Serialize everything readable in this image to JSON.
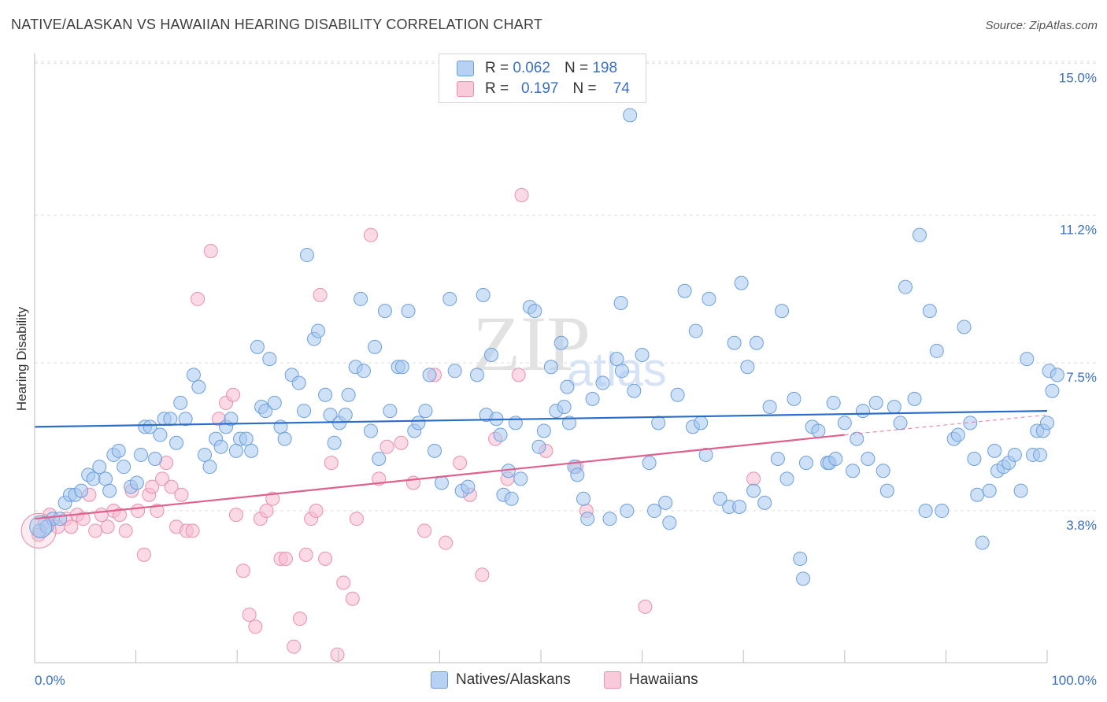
{
  "header": {
    "title": "NATIVE/ALASKAN VS HAWAIIAN HEARING DISABILITY CORRELATION CHART",
    "source": "Source: ZipAtlas.com"
  },
  "legend_top": {
    "rows": [
      {
        "r_label": "R =",
        "r_value": "0.062",
        "n_label": "N =",
        "n_value": "198"
      },
      {
        "r_label": "R =",
        "r_value": "0.197",
        "n_label": "N =",
        "n_value": "74"
      }
    ]
  },
  "legend_bottom": {
    "items": [
      {
        "label": "Natives/Alaskans"
      },
      {
        "label": "Hawaiians"
      }
    ]
  },
  "colors": {
    "blue_fill": "#a8c8f0",
    "blue_stroke": "#6c9fdc",
    "blue_line": "#2a6cc8",
    "pink_fill": "#f7bcd0",
    "pink_stroke": "#e890ae",
    "pink_line": "#e0608e",
    "grid": "#dcdcdc",
    "axis_text": "#3a6fc4"
  },
  "chart_data": {
    "type": "scatter",
    "ylabel": "Hearing Disability",
    "xlim": [
      0,
      100
    ],
    "ylim": [
      0,
      15.4
    ],
    "y_ticks": [
      3.8,
      7.5,
      11.2,
      15.0
    ],
    "y_tick_labels": [
      "3.8%",
      "7.5%",
      "11.2%",
      "15.0%"
    ],
    "x_tick_labels": [
      "0.0%",
      "100.0%"
    ],
    "grid": "horizontal dashed",
    "watermark": "ZIPatlas",
    "series": [
      {
        "name": "Natives/Alaskans",
        "color": "#6c9fdc",
        "trend": {
          "x": [
            0,
            100
          ],
          "y": [
            5.9,
            6.3
          ]
        },
        "points": [
          [
            0.5,
            3.3
          ],
          [
            1.2,
            3.4
          ],
          [
            1.8,
            3.6
          ],
          [
            2.5,
            3.6
          ],
          [
            3.0,
            4.0
          ],
          [
            3.5,
            4.2
          ],
          [
            4.0,
            4.2
          ],
          [
            4.6,
            4.3
          ],
          [
            5.3,
            4.7
          ],
          [
            5.8,
            4.6
          ],
          [
            6.4,
            4.9
          ],
          [
            7.0,
            4.6
          ],
          [
            7.4,
            4.3
          ],
          [
            7.8,
            5.2
          ],
          [
            8.3,
            5.3
          ],
          [
            8.8,
            4.9
          ],
          [
            9.5,
            4.4
          ],
          [
            10.1,
            4.5
          ],
          [
            10.5,
            5.2
          ],
          [
            10.9,
            5.9
          ],
          [
            11.4,
            5.9
          ],
          [
            11.9,
            5.1
          ],
          [
            12.4,
            5.7
          ],
          [
            12.8,
            6.1
          ],
          [
            13.4,
            6.1
          ],
          [
            14.0,
            5.5
          ],
          [
            14.4,
            6.5
          ],
          [
            14.9,
            6.1
          ],
          [
            15.7,
            7.2
          ],
          [
            16.2,
            6.9
          ],
          [
            16.8,
            5.2
          ],
          [
            17.3,
            4.9
          ],
          [
            17.9,
            5.6
          ],
          [
            18.4,
            5.4
          ],
          [
            18.9,
            5.9
          ],
          [
            19.4,
            6.1
          ],
          [
            19.9,
            5.3
          ],
          [
            20.3,
            5.6
          ],
          [
            20.9,
            5.6
          ],
          [
            21.4,
            5.3
          ],
          [
            22.0,
            7.9
          ],
          [
            22.4,
            6.4
          ],
          [
            22.8,
            6.3
          ],
          [
            23.2,
            7.6
          ],
          [
            23.7,
            6.5
          ],
          [
            24.3,
            5.9
          ],
          [
            24.7,
            5.6
          ],
          [
            25.4,
            7.2
          ],
          [
            26.1,
            7.0
          ],
          [
            26.6,
            6.3
          ],
          [
            26.9,
            10.2
          ],
          [
            27.6,
            8.1
          ],
          [
            28.0,
            8.3
          ],
          [
            28.7,
            6.7
          ],
          [
            29.2,
            6.2
          ],
          [
            29.6,
            5.5
          ],
          [
            30.1,
            6.0
          ],
          [
            30.7,
            6.2
          ],
          [
            31.0,
            6.7
          ],
          [
            31.7,
            7.4
          ],
          [
            32.2,
            9.1
          ],
          [
            32.5,
            7.3
          ],
          [
            33.2,
            5.8
          ],
          [
            33.6,
            7.9
          ],
          [
            34.0,
            5.1
          ],
          [
            34.6,
            8.8
          ],
          [
            35.1,
            6.3
          ],
          [
            35.9,
            7.4
          ],
          [
            36.3,
            7.4
          ],
          [
            36.9,
            8.8
          ],
          [
            37.5,
            5.8
          ],
          [
            37.9,
            6.0
          ],
          [
            38.6,
            6.3
          ],
          [
            39.0,
            7.2
          ],
          [
            39.5,
            5.3
          ],
          [
            40.2,
            4.5
          ],
          [
            41.0,
            9.1
          ],
          [
            41.5,
            7.3
          ],
          [
            42.2,
            4.3
          ],
          [
            42.8,
            4.4
          ],
          [
            43.7,
            7.2
          ],
          [
            44.3,
            9.2
          ],
          [
            44.6,
            6.2
          ],
          [
            45.1,
            7.7
          ],
          [
            45.6,
            6.1
          ],
          [
            46.0,
            5.7
          ],
          [
            46.3,
            4.2
          ],
          [
            46.8,
            4.8
          ],
          [
            47.1,
            4.1
          ],
          [
            47.5,
            6.0
          ],
          [
            48.0,
            4.6
          ],
          [
            48.9,
            8.9
          ],
          [
            49.4,
            8.8
          ],
          [
            49.8,
            5.4
          ],
          [
            50.3,
            5.8
          ],
          [
            51.0,
            7.4
          ],
          [
            51.5,
            6.3
          ],
          [
            52.0,
            8.0
          ],
          [
            52.3,
            6.4
          ],
          [
            52.6,
            6.9
          ],
          [
            52.8,
            6.0
          ],
          [
            53.3,
            4.9
          ],
          [
            53.6,
            4.7
          ],
          [
            54.2,
            4.1
          ],
          [
            54.6,
            3.6
          ],
          [
            55.1,
            6.6
          ],
          [
            56.1,
            7.0
          ],
          [
            56.8,
            3.6
          ],
          [
            57.5,
            7.6
          ],
          [
            57.9,
            9.0
          ],
          [
            58.0,
            7.3
          ],
          [
            58.5,
            3.8
          ],
          [
            58.8,
            13.7
          ],
          [
            59.2,
            6.8
          ],
          [
            60.0,
            7.7
          ],
          [
            60.7,
            5.0
          ],
          [
            61.2,
            3.8
          ],
          [
            61.6,
            6.0
          ],
          [
            62.3,
            4.0
          ],
          [
            62.7,
            3.5
          ],
          [
            63.5,
            6.7
          ],
          [
            64.2,
            9.3
          ],
          [
            65.0,
            5.9
          ],
          [
            65.3,
            8.3
          ],
          [
            65.8,
            6.0
          ],
          [
            66.3,
            5.2
          ],
          [
            66.6,
            9.1
          ],
          [
            67.7,
            4.1
          ],
          [
            68.6,
            3.9
          ],
          [
            69.1,
            8.0
          ],
          [
            69.6,
            3.9
          ],
          [
            69.8,
            9.5
          ],
          [
            70.4,
            7.4
          ],
          [
            71.0,
            4.3
          ],
          [
            71.3,
            8.0
          ],
          [
            72.1,
            4.0
          ],
          [
            72.6,
            6.4
          ],
          [
            73.4,
            5.1
          ],
          [
            73.8,
            8.8
          ],
          [
            74.3,
            4.6
          ],
          [
            75.0,
            6.6
          ],
          [
            75.6,
            2.6
          ],
          [
            75.9,
            2.1
          ],
          [
            76.2,
            5.0
          ],
          [
            76.8,
            5.9
          ],
          [
            77.4,
            5.8
          ],
          [
            78.3,
            5.0
          ],
          [
            78.5,
            5.0
          ],
          [
            78.9,
            6.5
          ],
          [
            79.1,
            5.1
          ],
          [
            80.0,
            6.0
          ],
          [
            80.8,
            4.8
          ],
          [
            81.2,
            5.6
          ],
          [
            81.8,
            6.3
          ],
          [
            82.3,
            5.1
          ],
          [
            83.1,
            6.5
          ],
          [
            83.8,
            4.8
          ],
          [
            84.2,
            4.3
          ],
          [
            84.9,
            6.4
          ],
          [
            85.5,
            6.0
          ],
          [
            86.0,
            9.4
          ],
          [
            86.9,
            6.6
          ],
          [
            87.4,
            10.7
          ],
          [
            88.0,
            3.8
          ],
          [
            88.4,
            8.8
          ],
          [
            89.1,
            7.8
          ],
          [
            89.6,
            3.8
          ],
          [
            90.8,
            5.6
          ],
          [
            91.2,
            5.7
          ],
          [
            91.8,
            8.4
          ],
          [
            92.4,
            6.0
          ],
          [
            92.8,
            5.1
          ],
          [
            93.1,
            4.2
          ],
          [
            93.6,
            3.0
          ],
          [
            94.3,
            4.3
          ],
          [
            94.8,
            5.3
          ],
          [
            95.1,
            4.8
          ],
          [
            95.7,
            4.9
          ],
          [
            96.2,
            5.0
          ],
          [
            96.8,
            5.2
          ],
          [
            97.4,
            4.3
          ],
          [
            98.0,
            7.6
          ],
          [
            98.6,
            5.2
          ],
          [
            99.0,
            5.8
          ],
          [
            99.3,
            5.2
          ],
          [
            99.6,
            5.8
          ],
          [
            100.0,
            6.0
          ],
          [
            100.2,
            7.3
          ],
          [
            100.5,
            6.8
          ],
          [
            101.0,
            7.2
          ]
        ]
      },
      {
        "name": "Hawaiians",
        "color": "#e890ae",
        "trend": {
          "x": [
            0,
            80
          ],
          "y": [
            3.6,
            5.7
          ]
        },
        "trend_dashed": {
          "x": [
            80,
            100
          ],
          "y": [
            5.7,
            6.2
          ]
        },
        "points": [
          [
            0.4,
            3.2
          ],
          [
            1.0,
            3.5
          ],
          [
            1.5,
            3.7
          ],
          [
            2.3,
            3.4
          ],
          [
            3.1,
            3.6
          ],
          [
            3.6,
            3.4
          ],
          [
            4.2,
            3.7
          ],
          [
            4.8,
            3.6
          ],
          [
            5.4,
            4.2
          ],
          [
            6.0,
            3.3
          ],
          [
            6.6,
            3.7
          ],
          [
            7.2,
            3.4
          ],
          [
            7.8,
            3.8
          ],
          [
            8.4,
            3.7
          ],
          [
            9.0,
            3.3
          ],
          [
            9.6,
            4.3
          ],
          [
            10.2,
            3.8
          ],
          [
            10.8,
            2.7
          ],
          [
            11.3,
            4.2
          ],
          [
            11.6,
            4.4
          ],
          [
            12.1,
            3.8
          ],
          [
            12.6,
            4.6
          ],
          [
            13.0,
            5.0
          ],
          [
            13.5,
            4.4
          ],
          [
            14.0,
            3.4
          ],
          [
            14.5,
            4.2
          ],
          [
            15.0,
            3.3
          ],
          [
            15.6,
            3.3
          ],
          [
            16.1,
            9.1
          ],
          [
            17.4,
            10.3
          ],
          [
            18.2,
            6.1
          ],
          [
            18.9,
            6.5
          ],
          [
            19.6,
            6.7
          ],
          [
            19.9,
            3.7
          ],
          [
            20.6,
            2.3
          ],
          [
            21.2,
            1.2
          ],
          [
            21.8,
            0.9
          ],
          [
            22.3,
            3.6
          ],
          [
            22.9,
            3.8
          ],
          [
            23.5,
            4.1
          ],
          [
            24.3,
            2.6
          ],
          [
            24.8,
            2.6
          ],
          [
            25.6,
            0.4
          ],
          [
            26.2,
            1.1
          ],
          [
            26.8,
            2.7
          ],
          [
            27.3,
            3.6
          ],
          [
            27.8,
            3.8
          ],
          [
            28.2,
            9.2
          ],
          [
            28.7,
            2.6
          ],
          [
            29.3,
            5.0
          ],
          [
            29.9,
            0.2
          ],
          [
            30.5,
            2.0
          ],
          [
            31.4,
            1.6
          ],
          [
            31.8,
            3.6
          ],
          [
            33.2,
            10.7
          ],
          [
            34.0,
            4.6
          ],
          [
            34.8,
            5.4
          ],
          [
            36.2,
            5.5
          ],
          [
            37.4,
            4.5
          ],
          [
            38.5,
            3.3
          ],
          [
            39.5,
            7.2
          ],
          [
            40.6,
            3.0
          ],
          [
            42.0,
            5.0
          ],
          [
            43.0,
            4.2
          ],
          [
            44.2,
            2.2
          ],
          [
            45.5,
            5.6
          ],
          [
            46.7,
            4.6
          ],
          [
            47.8,
            7.2
          ],
          [
            48.1,
            11.7
          ],
          [
            50.5,
            5.3
          ],
          [
            53.5,
            4.9
          ],
          [
            54.5,
            3.8
          ],
          [
            60.3,
            1.4
          ],
          [
            71.0,
            4.6
          ]
        ]
      }
    ]
  }
}
